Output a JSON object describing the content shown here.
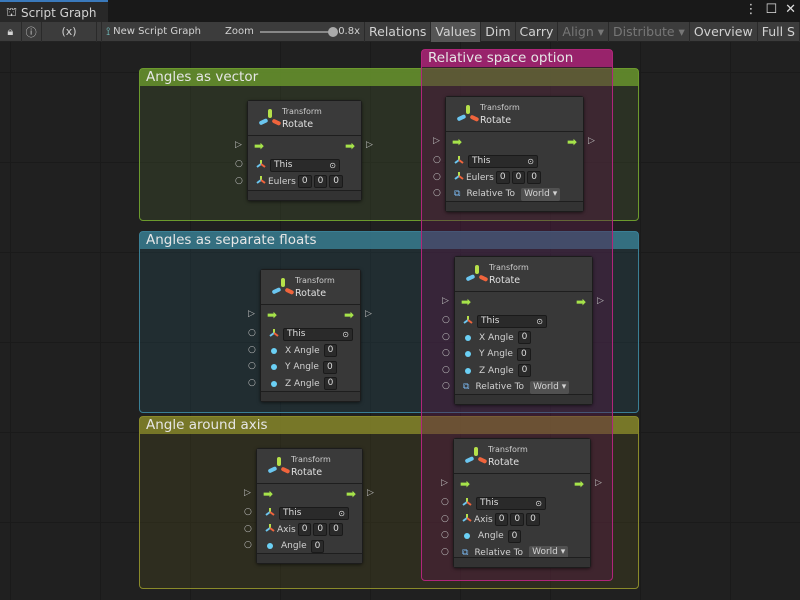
{
  "window": {
    "tab_title": "Script Graph",
    "tab_icon": "hierarchy-icon",
    "menu_icon": "kebab-icon",
    "maximize_icon": "maximize-icon",
    "close_icon": "close-icon"
  },
  "toolbar": {
    "lock_icon": "lock-icon",
    "info_icon": "info-icon",
    "variables_icon": "(x)",
    "new_graph": "New Script Graph",
    "zoom_label": "Zoom",
    "zoom_value": "0.8x",
    "zoom_level": 0.8,
    "buttons": [
      "Relations",
      "Values",
      "Dim",
      "Carry",
      "Align ▾",
      "Distribute ▾",
      "Overview",
      "Full S"
    ],
    "active": "Values",
    "disabled": [
      "Align ▾",
      "Distribute ▾"
    ]
  },
  "colors": {
    "flow_arrow": "#a6e34a",
    "float_port": "#6bd0f5",
    "group_green": "#6c9a2d",
    "group_blue": "#3a7f95",
    "group_yellow": "#8a8a2a",
    "group_magenta": "#b0257a"
  },
  "groups": [
    {
      "title": "Angles as vector",
      "color": "#6c9a2d"
    },
    {
      "title": "Angles as separate floats",
      "color": "#3a7f95"
    },
    {
      "title": "Angle around axis",
      "color": "#8a8a2a"
    },
    {
      "title": "Relative space option",
      "color": "#b0257a"
    }
  ],
  "nodes": [
    {
      "category": "Transform",
      "title": "Rotate",
      "rows": [
        {
          "type": "target",
          "label": "This"
        },
        {
          "type": "vec",
          "label": "Eulers",
          "values": [
            "0",
            "0",
            "0"
          ]
        }
      ]
    },
    {
      "category": "Transform",
      "title": "Rotate",
      "rows": [
        {
          "type": "target",
          "label": "This"
        },
        {
          "type": "vec",
          "label": "Eulers",
          "values": [
            "0",
            "0",
            "0"
          ]
        },
        {
          "type": "enum",
          "label": "Relative To",
          "value": "World"
        }
      ]
    },
    {
      "category": "Transform",
      "title": "Rotate",
      "rows": [
        {
          "type": "target",
          "label": "This"
        },
        {
          "type": "float",
          "label": "X Angle",
          "value": "0"
        },
        {
          "type": "float",
          "label": "Y Angle",
          "value": "0"
        },
        {
          "type": "float",
          "label": "Z Angle",
          "value": "0"
        }
      ]
    },
    {
      "category": "Transform",
      "title": "Rotate",
      "rows": [
        {
          "type": "target",
          "label": "This"
        },
        {
          "type": "float",
          "label": "X Angle",
          "value": "0"
        },
        {
          "type": "float",
          "label": "Y Angle",
          "value": "0"
        },
        {
          "type": "float",
          "label": "Z Angle",
          "value": "0"
        },
        {
          "type": "enum",
          "label": "Relative To",
          "value": "World"
        }
      ]
    },
    {
      "category": "Transform",
      "title": "Rotate",
      "rows": [
        {
          "type": "target",
          "label": "This"
        },
        {
          "type": "vec",
          "label": "Axis",
          "values": [
            "0",
            "0",
            "0"
          ]
        },
        {
          "type": "float",
          "label": "Angle",
          "value": "0"
        }
      ]
    },
    {
      "category": "Transform",
      "title": "Rotate",
      "rows": [
        {
          "type": "target",
          "label": "This"
        },
        {
          "type": "vec",
          "label": "Axis",
          "values": [
            "0",
            "0",
            "0"
          ]
        },
        {
          "type": "float",
          "label": "Angle",
          "value": "0"
        },
        {
          "type": "enum",
          "label": "Relative To",
          "value": "World"
        }
      ]
    }
  ]
}
